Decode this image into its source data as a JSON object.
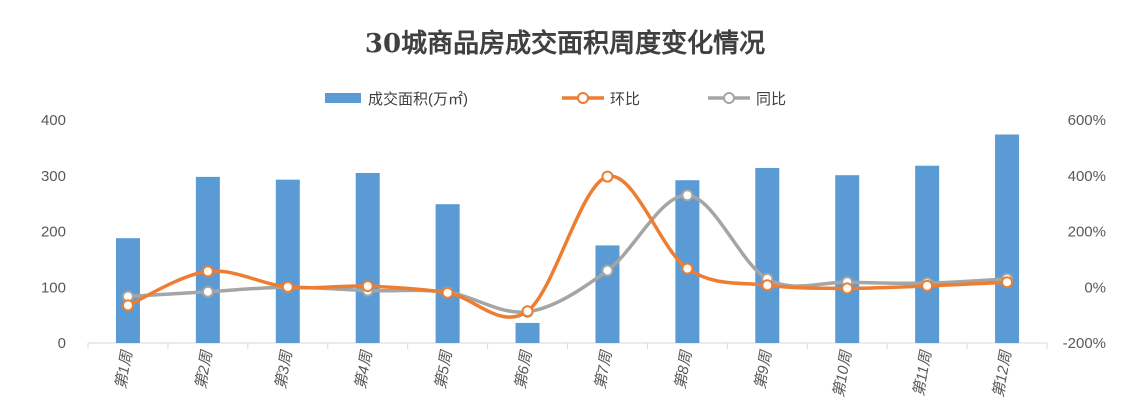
{
  "chart_data": {
    "type": "bar-line-combo",
    "title": "30城商品房成交面积周度变化情况",
    "categories": [
      "第1周",
      "第2周",
      "第3周",
      "第4周",
      "第5周",
      "第6周",
      "第7周",
      "第8周",
      "第9周",
      "第10周",
      "第11周",
      "第12周"
    ],
    "series": [
      {
        "name": "成交面积(万㎡)",
        "type": "bar",
        "axis": "left",
        "color": "#5B9BD5",
        "values": [
          188,
          298,
          293,
          305,
          249,
          36,
          175,
          292,
          314,
          301,
          318,
          374
        ]
      },
      {
        "name": "环比",
        "type": "line",
        "axis": "right",
        "color": "#ED7D31",
        "values": [
          -0.65,
          0.57,
          0.01,
          0.04,
          -0.2,
          -0.86,
          3.97,
          0.67,
          0.07,
          -0.04,
          0.05,
          0.18
        ]
      },
      {
        "name": "同比",
        "type": "line",
        "axis": "right",
        "color": "#A5A5A5",
        "values": [
          -0.33,
          -0.16,
          0.0,
          -0.12,
          -0.18,
          -0.88,
          0.6,
          3.3,
          0.3,
          0.18,
          0.15,
          0.3
        ]
      }
    ],
    "y_left": {
      "min": 0,
      "max": 400,
      "ticks": [
        "0",
        "100",
        "200",
        "300",
        "400"
      ]
    },
    "y_right": {
      "min": -2,
      "max": 6,
      "ticks": [
        "-200%",
        "0%",
        "200%",
        "400%",
        "600%"
      ]
    },
    "grid": false,
    "legend": "top-center"
  }
}
